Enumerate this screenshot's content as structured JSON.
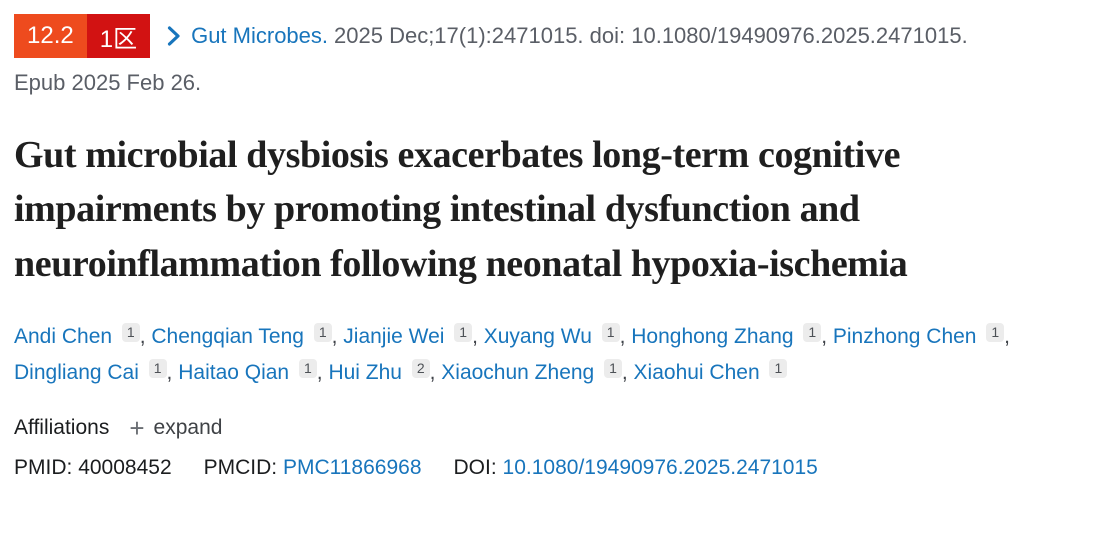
{
  "badges": {
    "impact_factor": "12.2",
    "cas_zone": "1区",
    "impact_factor_bg": "#ee4b1e",
    "cas_zone_bg": "#d21212"
  },
  "citation": {
    "journal": "Gut Microbes.",
    "details": "2025 Dec;17(1):2471015. doi: 10.1080/19490976.2025.2471015.",
    "epub": "Epub 2025 Feb 26."
  },
  "title": "Gut microbial dysbiosis exacerbates long-term cognitive impairments by promoting intestinal dysfunction and neuroinflammation following neonatal hypoxia-ischemia",
  "authors": [
    {
      "name": "Andi Chen",
      "sup": "1"
    },
    {
      "name": "Chengqian Teng",
      "sup": "1"
    },
    {
      "name": "Jianjie Wei",
      "sup": "1"
    },
    {
      "name": "Xuyang Wu",
      "sup": "1"
    },
    {
      "name": "Honghong Zhang",
      "sup": "1"
    },
    {
      "name": "Pinzhong Chen",
      "sup": "1"
    },
    {
      "name": "Dingliang Cai",
      "sup": "1"
    },
    {
      "name": "Haitao Qian",
      "sup": "1"
    },
    {
      "name": "Hui Zhu",
      "sup": "2"
    },
    {
      "name": "Xiaochun Zheng",
      "sup": "1"
    },
    {
      "name": "Xiaohui Chen",
      "sup": "1"
    }
  ],
  "affiliations": {
    "label": "Affiliations",
    "plus_icon": "+",
    "expand_label": "expand"
  },
  "ids": {
    "pmid_label": "PMID:",
    "pmid": "40008452",
    "pmcid_label": "PMCID:",
    "pmcid": "PMC11866968",
    "doi_label": "DOI:",
    "doi": "10.1080/19490976.2025.2471015"
  },
  "colors": {
    "link_blue": "#1875bc",
    "muted_gray": "#5a5e66",
    "title_black": "#1f1f1f",
    "sup_badge_bg": "#ececec"
  }
}
